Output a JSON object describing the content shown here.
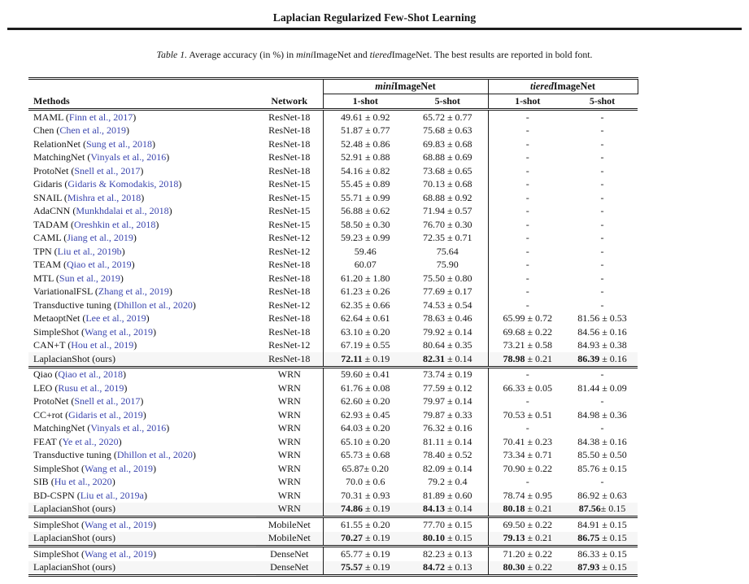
{
  "page": {
    "running_title": "Laplacian Regularized Few-Shot Learning"
  },
  "colors": {
    "citation_link": "#3a45ae",
    "ours_row_highlight": "#f6f6f6",
    "rule": "#1c1c1c"
  },
  "caption": {
    "parts": [
      {
        "text": "Table 1.",
        "italic": true
      },
      {
        "text": " Average accuracy (in %) in ",
        "italic": false
      },
      {
        "text": "mini",
        "italic": true
      },
      {
        "text": "ImageNet and ",
        "italic": false
      },
      {
        "text": "tiered",
        "italic": true
      },
      {
        "text": "ImageNet. The best results are reported in bold font.",
        "italic": false
      }
    ]
  },
  "table": {
    "group_headers": [
      {
        "prefix": "mini",
        "name": "ImageNet"
      },
      {
        "prefix": "tiered",
        "name": "ImageNet"
      }
    ],
    "columns": {
      "methods": "Methods",
      "network": "Network",
      "shot1": "1-shot",
      "shot5": "5-shot"
    },
    "rows": [
      {
        "method": "MAML",
        "citation": "Finn et al., 2017",
        "network": "ResNet-18",
        "values": [
          "49.61 ± 0.92",
          "65.72 ± 0.77",
          "-",
          "-"
        ],
        "ours": false,
        "section_start": false
      },
      {
        "method": "Chen",
        "citation": "Chen et al., 2019",
        "network": "ResNet-18",
        "values": [
          "51.87 ± 0.77",
          "75.68 ± 0.63",
          "-",
          "-"
        ],
        "ours": false,
        "section_start": false
      },
      {
        "method": "RelationNet",
        "citation": "Sung et al., 2018",
        "network": "ResNet-18",
        "values": [
          "52.48 ± 0.86",
          "69.83 ± 0.68",
          "-",
          "-"
        ],
        "ours": false,
        "section_start": false
      },
      {
        "method": "MatchingNet",
        "citation": "Vinyals et al., 2016",
        "network": "ResNet-18",
        "values": [
          "52.91 ± 0.88",
          "68.88 ± 0.69",
          "-",
          "-"
        ],
        "ours": false,
        "section_start": false
      },
      {
        "method": "ProtoNet",
        "citation": "Snell et al., 2017",
        "network": "ResNet-18",
        "values": [
          "54.16 ± 0.82",
          "73.68 ± 0.65",
          "-",
          "-"
        ],
        "ours": false,
        "section_start": false
      },
      {
        "method": "Gidaris",
        "citation": "Gidaris & Komodakis, 2018",
        "network": "ResNet-15",
        "values": [
          "55.45 ± 0.89",
          "70.13 ± 0.68",
          "-",
          "-"
        ],
        "ours": false,
        "section_start": false
      },
      {
        "method": "SNAIL",
        "citation": "Mishra et al., 2018",
        "network": "ResNet-15",
        "values": [
          "55.71 ± 0.99",
          "68.88 ± 0.92",
          "-",
          "-"
        ],
        "ours": false,
        "section_start": false
      },
      {
        "method": "AdaCNN",
        "citation": "Munkhdalai et al., 2018",
        "network": "ResNet-15",
        "values": [
          "56.88 ± 0.62",
          "71.94 ± 0.57",
          "-",
          "-"
        ],
        "ours": false,
        "section_start": false
      },
      {
        "method": "TADAM",
        "citation": "Oreshkin et al., 2018",
        "network": "ResNet-15",
        "values": [
          "58.50 ± 0.30",
          "76.70 ± 0.30",
          "-",
          "-"
        ],
        "ours": false,
        "section_start": false
      },
      {
        "method": "CAML",
        "citation": "Jiang et al., 2019",
        "network": "ResNet-12",
        "values": [
          "59.23 ± 0.99",
          "72.35 ± 0.71",
          "-",
          "-"
        ],
        "ours": false,
        "section_start": false
      },
      {
        "method": "TPN",
        "citation": "Liu et al., 2019b",
        "network": "ResNet-12",
        "values": [
          "59.46",
          "75.64",
          "-",
          "-"
        ],
        "ours": false,
        "section_start": false
      },
      {
        "method": "TEAM",
        "citation": "Qiao et al., 2019",
        "network": "ResNet-18",
        "values": [
          "60.07",
          "75.90",
          "-",
          "-"
        ],
        "ours": false,
        "section_start": false
      },
      {
        "method": "MTL",
        "citation": "Sun et al., 2019",
        "network": "ResNet-18",
        "values": [
          "61.20 ± 1.80",
          "75.50 ± 0.80",
          "-",
          "-"
        ],
        "ours": false,
        "section_start": false
      },
      {
        "method": "VariationalFSL",
        "citation": "Zhang et al., 2019",
        "network": "ResNet-18",
        "values": [
          "61.23 ± 0.26",
          "77.69 ± 0.17",
          "-",
          "-"
        ],
        "ours": false,
        "section_start": false
      },
      {
        "method": "Transductive tuning",
        "citation": "Dhillon et al., 2020",
        "network": "ResNet-12",
        "values": [
          "62.35 ± 0.66",
          "74.53 ± 0.54",
          "-",
          "-"
        ],
        "ours": false,
        "section_start": false
      },
      {
        "method": "MetaoptNet",
        "citation": "Lee et al., 2019",
        "network": "ResNet-18",
        "values": [
          "62.64 ± 0.61",
          "78.63 ± 0.46",
          "65.99 ± 0.72",
          "81.56 ± 0.53"
        ],
        "ours": false,
        "section_start": false
      },
      {
        "method": "SimpleShot",
        "citation": "Wang et al., 2019",
        "network": "ResNet-18",
        "values": [
          "63.10 ± 0.20",
          "79.92 ± 0.14",
          "69.68 ± 0.22",
          "84.56 ± 0.16"
        ],
        "ours": false,
        "section_start": false
      },
      {
        "method": "CAN+T",
        "citation": "Hou et al., 2019",
        "network": "ResNet-12",
        "values": [
          "67.19 ± 0.55",
          "80.64 ± 0.35",
          "73.21 ± 0.58",
          "84.93 ± 0.38"
        ],
        "ours": false,
        "section_start": false
      },
      {
        "method": "LaplacianShot (ours)",
        "citation": null,
        "network": "ResNet-18",
        "values": [
          "72.11 ± 0.19",
          "82.31 ± 0.14",
          "78.98 ± 0.21",
          "86.39 ± 0.16"
        ],
        "ours": true,
        "section_start": false
      },
      {
        "method": "Qiao",
        "citation": "Qiao et al., 2018",
        "network": "WRN",
        "values": [
          "59.60 ± 0.41",
          "73.74 ± 0.19",
          "-",
          "-"
        ],
        "ours": false,
        "section_start": true
      },
      {
        "method": "LEO",
        "citation": "Rusu et al., 2019",
        "network": "WRN",
        "values": [
          "61.76 ± 0.08",
          "77.59 ± 0.12",
          "66.33 ± 0.05",
          "81.44 ± 0.09"
        ],
        "ours": false,
        "section_start": false
      },
      {
        "method": "ProtoNet",
        "citation": "Snell et al., 2017",
        "network": "WRN",
        "values": [
          "62.60 ± 0.20",
          "79.97 ± 0.14",
          "-",
          "-"
        ],
        "ours": false,
        "section_start": false
      },
      {
        "method": "CC+rot",
        "citation": "Gidaris et al., 2019",
        "network": "WRN",
        "values": [
          "62.93 ± 0.45",
          "79.87 ± 0.33",
          "70.53 ± 0.51",
          "84.98 ± 0.36"
        ],
        "ours": false,
        "section_start": false
      },
      {
        "method": "MatchingNet",
        "citation": "Vinyals et al., 2016",
        "network": "WRN",
        "values": [
          "64.03 ± 0.20",
          "76.32 ± 0.16",
          "-",
          "-"
        ],
        "ours": false,
        "section_start": false
      },
      {
        "method": "FEAT",
        "citation": "Ye et al., 2020",
        "network": "WRN",
        "values": [
          "65.10 ± 0.20",
          "81.11 ± 0.14",
          "70.41 ± 0.23",
          "84.38 ± 0.16"
        ],
        "ours": false,
        "section_start": false
      },
      {
        "method": "Transductive tuning",
        "citation": "Dhillon et al., 2020",
        "network": "WRN",
        "values": [
          "65.73 ± 0.68",
          "78.40 ± 0.52",
          "73.34 ± 0.71",
          "85.50 ± 0.50"
        ],
        "ours": false,
        "section_start": false
      },
      {
        "method": "SimpleShot",
        "citation": "Wang et al., 2019",
        "network": "WRN",
        "values": [
          "65.87± 0.20",
          "82.09 ± 0.14",
          "70.90 ± 0.22",
          "85.76 ± 0.15"
        ],
        "ours": false,
        "section_start": false
      },
      {
        "method": "SIB",
        "citation": "Hu et al., 2020",
        "network": "WRN",
        "values": [
          "70.0 ± 0.6",
          "79.2 ± 0.4",
          "-",
          "-"
        ],
        "ours": false,
        "section_start": false
      },
      {
        "method": "BD-CSPN",
        "citation": "Liu et al., 2019a",
        "network": "WRN",
        "values": [
          "70.31 ± 0.93",
          "81.89 ± 0.60",
          "78.74 ± 0.95",
          "86.92 ± 0.63"
        ],
        "ours": false,
        "section_start": false
      },
      {
        "method": "LaplacianShot (ours)",
        "citation": null,
        "network": "WRN",
        "values": [
          "74.86 ± 0.19",
          "84.13 ± 0.14",
          "80.18 ± 0.21",
          "87.56± 0.15"
        ],
        "ours": true,
        "section_start": false
      },
      {
        "method": "SimpleShot",
        "citation": "Wang et al., 2019",
        "network": "MobileNet",
        "values": [
          "61.55 ± 0.20",
          "77.70 ± 0.15",
          "69.50 ± 0.22",
          "84.91 ± 0.15"
        ],
        "ours": false,
        "section_start": true
      },
      {
        "method": "LaplacianShot (ours)",
        "citation": null,
        "network": "MobileNet",
        "values": [
          "70.27 ± 0.19",
          "80.10 ± 0.15",
          "79.13 ± 0.21",
          "86.75 ± 0.15"
        ],
        "ours": true,
        "section_start": false
      },
      {
        "method": "SimpleShot",
        "citation": "Wang et al., 2019",
        "network": "DenseNet",
        "values": [
          "65.77 ± 0.19",
          "82.23 ± 0.13",
          "71.20 ± 0.22",
          "86.33 ± 0.15"
        ],
        "ours": false,
        "section_start": true
      },
      {
        "method": "LaplacianShot (ours)",
        "citation": null,
        "network": "DenseNet",
        "values": [
          "75.57 ± 0.19",
          "84.72 ± 0.13",
          "80.30 ± 0.22",
          "87.93 ± 0.15"
        ],
        "ours": true,
        "section_start": false
      }
    ]
  }
}
